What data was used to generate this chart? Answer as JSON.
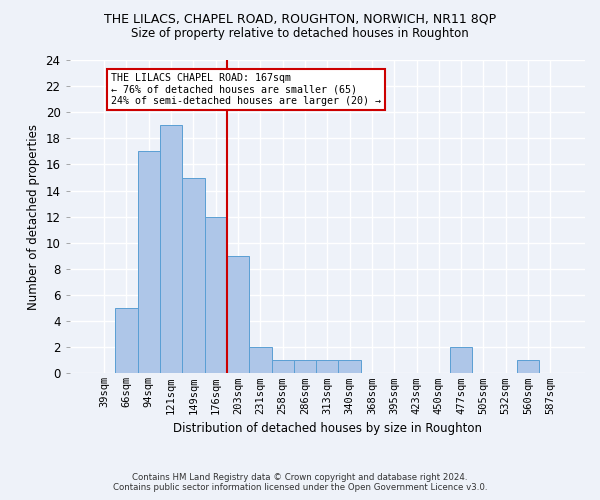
{
  "title": "THE LILACS, CHAPEL ROAD, ROUGHTON, NORWICH, NR11 8QP",
  "subtitle": "Size of property relative to detached houses in Roughton",
  "xlabel": "Distribution of detached houses by size in Roughton",
  "ylabel": "Number of detached properties",
  "bar_labels": [
    "39sqm",
    "66sqm",
    "94sqm",
    "121sqm",
    "149sqm",
    "176sqm",
    "203sqm",
    "231sqm",
    "258sqm",
    "286sqm",
    "313sqm",
    "340sqm",
    "368sqm",
    "395sqm",
    "423sqm",
    "450sqm",
    "477sqm",
    "505sqm",
    "532sqm",
    "560sqm",
    "587sqm"
  ],
  "bar_values": [
    0,
    5,
    17,
    19,
    15,
    12,
    9,
    2,
    1,
    1,
    1,
    1,
    0,
    0,
    0,
    0,
    2,
    0,
    0,
    1,
    0
  ],
  "bar_color": "#aec6e8",
  "bar_edge_color": "#5a9fd4",
  "ylim": [
    0,
    24
  ],
  "yticks": [
    0,
    2,
    4,
    6,
    8,
    10,
    12,
    14,
    16,
    18,
    20,
    22,
    24
  ],
  "property_line_x": 5.5,
  "property_line_color": "#cc0000",
  "annotation_text": "THE LILACS CHAPEL ROAD: 167sqm\n← 76% of detached houses are smaller (65)\n24% of semi-detached houses are larger (20) →",
  "annotation_box_color": "#cc0000",
  "footer_line1": "Contains HM Land Registry data © Crown copyright and database right 2024.",
  "footer_line2": "Contains public sector information licensed under the Open Government Licence v3.0.",
  "background_color": "#eef2f9",
  "axes_background_color": "#eef2f9",
  "grid_color": "#ffffff"
}
